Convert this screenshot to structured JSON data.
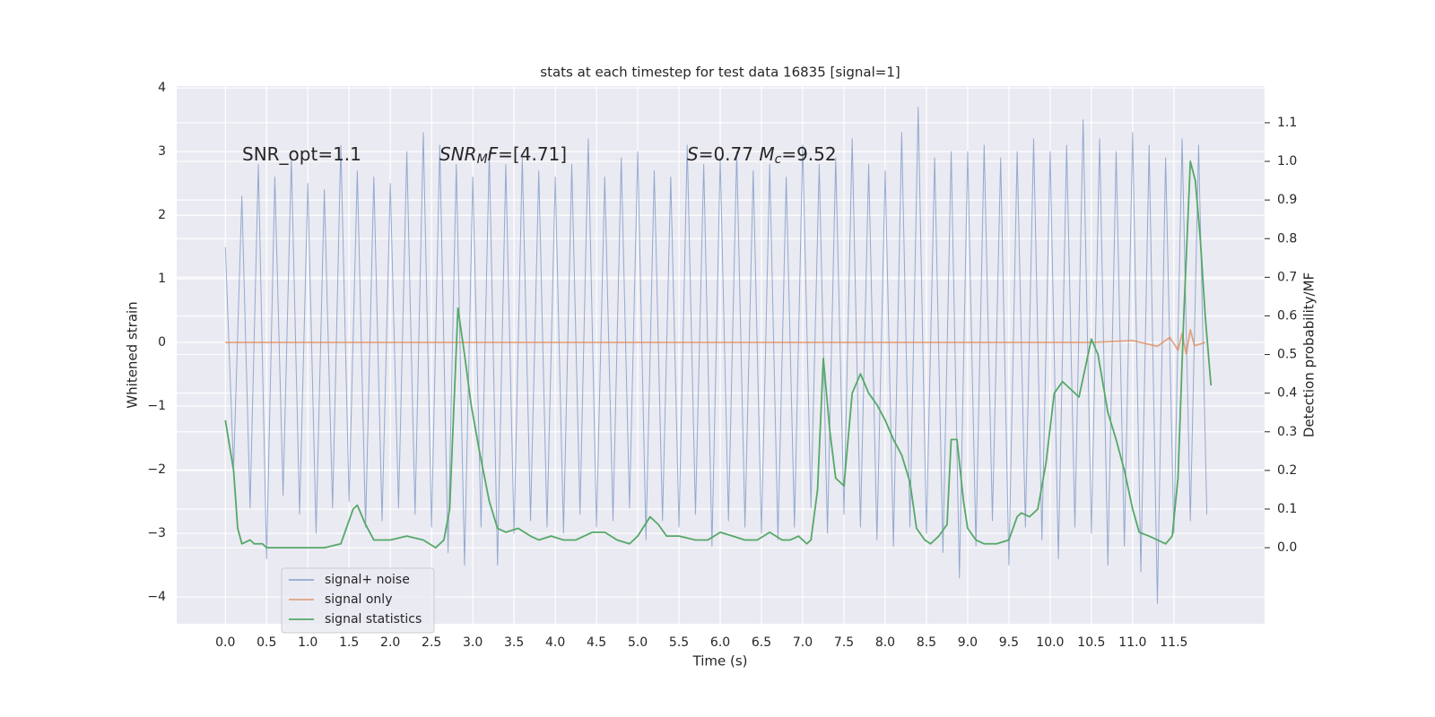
{
  "chart_data": {
    "type": "line",
    "title": "stats at each timestep for test data 16835 [signal=1]",
    "x_label": "Time (s)",
    "y_label": "Whitened strain",
    "y2_label": "Detection probability/MF",
    "xlim": [
      -0.59,
      12.6
    ],
    "ylim": [
      -4.42,
      4.03
    ],
    "y2lim": [
      -0.197,
      1.195
    ],
    "xticks": [
      {
        "value": 0,
        "label": "0.0"
      },
      0.5,
      {
        "value": 1,
        "label": "1.0"
      },
      1.5,
      {
        "value": 2,
        "label": "2.0"
      },
      2.5,
      {
        "value": 3,
        "label": "3.0"
      },
      3.5,
      {
        "value": 4,
        "label": "4.0"
      },
      4.5,
      {
        "value": 5,
        "label": "5.0"
      },
      5.5,
      {
        "value": 6,
        "label": "6.0"
      },
      6.5,
      {
        "value": 7,
        "label": "7.0"
      },
      7.5,
      {
        "value": 8,
        "label": "8.0"
      },
      8.5,
      {
        "value": 9,
        "label": "9.0"
      },
      9.5,
      {
        "value": 10,
        "label": "10.0"
      },
      10.5,
      {
        "value": 11,
        "label": "11.0"
      },
      11.5
    ],
    "yticks": [
      {
        "value": -4,
        "label": "−4"
      },
      {
        "value": -3,
        "label": "−3"
      },
      {
        "value": -2,
        "label": "−2"
      },
      {
        "value": -1,
        "label": "−1"
      },
      0,
      1,
      2,
      3,
      4
    ],
    "y2ticks": [
      {
        "value": 0,
        "label": "0.0"
      },
      0.1,
      0.2,
      0.3,
      0.4,
      0.5,
      0.6,
      0.7,
      0.8,
      0.9,
      {
        "value": 1,
        "label": "1.0"
      },
      1.1
    ],
    "grid": true,
    "legend": "lower left",
    "annotations": [
      [
        {
          "text": "SNR_opt=1.1",
          "style": "normal"
        }
      ],
      [
        {
          "text": "SNR",
          "style": "italic"
        },
        {
          "text": "M",
          "style": "sub"
        },
        {
          "text": "F",
          "style": "italic"
        },
        {
          "text": "=[4.71]",
          "style": "normal"
        }
      ],
      [
        {
          "text": "S",
          "style": "italic"
        },
        {
          "text": "=0.77   ",
          "style": "normal"
        },
        {
          "text": "M",
          "style": "italic"
        },
        {
          "text": "c",
          "style": "sub"
        },
        {
          "text": "=9.52",
          "style": "normal"
        }
      ]
    ],
    "series": [
      {
        "name": "signal+ noise",
        "color": "#4c72b0",
        "opacity": 0.55,
        "x": [
          0,
          0.1,
          0.2,
          0.3,
          0.4,
          0.5,
          0.6,
          0.7,
          0.8,
          0.9,
          1,
          1.1,
          1.2,
          1.3,
          1.4,
          1.5,
          1.6,
          1.7,
          1.8,
          1.9,
          2,
          2.1,
          2.2,
          2.3,
          2.4,
          2.5,
          2.6,
          2.7,
          2.8,
          2.9,
          3,
          3.1,
          3.2,
          3.3,
          3.4,
          3.5,
          3.6,
          3.7,
          3.8,
          3.9,
          4,
          4.1,
          4.2,
          4.3,
          4.4,
          4.5,
          4.6,
          4.7,
          4.8,
          4.9,
          5,
          5.1,
          5.2,
          5.3,
          5.4,
          5.5,
          5.6,
          5.7,
          5.8,
          5.9,
          6,
          6.1,
          6.2,
          6.3,
          6.4,
          6.5,
          6.6,
          6.7,
          6.8,
          6.9,
          7,
          7.1,
          7.2,
          7.3,
          7.4,
          7.5,
          7.6,
          7.7,
          7.8,
          7.9,
          8,
          8.1,
          8.2,
          8.3,
          8.4,
          8.5,
          8.6,
          8.7,
          8.8,
          8.9,
          9,
          9.1,
          9.2,
          9.3,
          9.4,
          9.5,
          9.6,
          9.7,
          9.8,
          9.9,
          10,
          10.1,
          10.2,
          10.3,
          10.4,
          10.5,
          10.6,
          10.7,
          10.8,
          10.9,
          11,
          11.1,
          11.2,
          11.3,
          11.4,
          11.5,
          11.6,
          11.7,
          11.8,
          11.9
        ],
        "values": [
          1.5,
          -2.0,
          2.3,
          -2.6,
          2.8,
          -3.4,
          2.6,
          -2.4,
          2.9,
          -2.7,
          2.5,
          -3.0,
          2.4,
          -2.6,
          3.1,
          -2.5,
          2.7,
          -2.9,
          2.6,
          -2.8,
          2.5,
          -2.6,
          3.0,
          -2.7,
          3.3,
          -2.9,
          3.1,
          -3.3,
          2.8,
          -3.5,
          2.6,
          -2.9,
          3.0,
          -3.5,
          2.8,
          -3.0,
          2.9,
          -2.8,
          2.7,
          -2.9,
          2.6,
          -3.0,
          2.8,
          -2.7,
          3.2,
          -2.9,
          2.6,
          -2.8,
          2.9,
          -2.6,
          3.0,
          -3.1,
          2.7,
          -2.8,
          2.6,
          -2.9,
          3.1,
          -2.7,
          2.8,
          -3.2,
          2.9,
          -2.8,
          3.0,
          -2.9,
          2.7,
          -3.0,
          2.8,
          -3.1,
          2.6,
          -2.9,
          3.1,
          -2.6,
          2.8,
          -3.0,
          2.9,
          -2.7,
          3.2,
          -2.9,
          2.8,
          -3.1,
          2.7,
          -3.2,
          3.3,
          -2.9,
          3.7,
          -3.0,
          2.9,
          -3.3,
          3.0,
          -3.7,
          3.0,
          -3.2,
          3.1,
          -2.8,
          2.9,
          -3.5,
          3.0,
          -2.9,
          3.2,
          -3.1,
          3.0,
          -3.4,
          3.1,
          -2.9,
          3.5,
          -3.0,
          3.2,
          -3.5,
          3.0,
          -3.2,
          3.3,
          -3.6,
          3.1,
          -4.1,
          2.9,
          -3.0,
          3.2,
          -2.8,
          3.1,
          -2.7
        ]
      },
      {
        "name": "signal only",
        "color": "#dd8452",
        "opacity": 0.7,
        "x": [
          0,
          10.5,
          11.0,
          11.3,
          11.45,
          11.55,
          11.6,
          11.65,
          11.7,
          11.75,
          11.88
        ],
        "values": [
          0,
          0,
          0.03,
          -0.06,
          0.08,
          -0.12,
          0.14,
          -0.18,
          0.2,
          -0.05,
          0
        ]
      },
      {
        "name": "signal statistics",
        "color": "#55a868",
        "opacity": 1,
        "axis": "y2",
        "x": [
          0,
          0.1,
          0.15,
          0.2,
          0.3,
          0.35,
          0.45,
          0.5,
          0.7,
          0.9,
          1.2,
          1.4,
          1.55,
          1.6,
          1.7,
          1.8,
          2.0,
          2.2,
          2.4,
          2.55,
          2.65,
          2.72,
          2.82,
          2.9,
          2.98,
          3.08,
          3.2,
          3.3,
          3.4,
          3.55,
          3.7,
          3.8,
          3.95,
          4.1,
          4.25,
          4.45,
          4.6,
          4.75,
          4.9,
          5.0,
          5.15,
          5.25,
          5.35,
          5.5,
          5.7,
          5.85,
          6.0,
          6.15,
          6.3,
          6.45,
          6.6,
          6.75,
          6.85,
          6.95,
          7.05,
          7.1,
          7.18,
          7.25,
          7.33,
          7.4,
          7.5,
          7.6,
          7.7,
          7.8,
          7.9,
          8.0,
          8.1,
          8.2,
          8.3,
          8.38,
          8.48,
          8.55,
          8.65,
          8.75,
          8.8,
          8.87,
          8.95,
          9.0,
          9.1,
          9.2,
          9.35,
          9.5,
          9.6,
          9.65,
          9.75,
          9.85,
          9.95,
          10.05,
          10.15,
          10.25,
          10.35,
          10.42,
          10.5,
          10.58,
          10.7,
          10.8,
          10.9,
          11.0,
          11.08,
          11.2,
          11.3,
          11.4,
          11.48,
          11.55,
          11.62,
          11.7,
          11.76,
          11.82,
          11.88,
          11.95
        ],
        "values": [
          0.33,
          0.2,
          0.05,
          0.01,
          0.02,
          0.01,
          0.01,
          0.0,
          0.0,
          0.0,
          0.0,
          0.01,
          0.1,
          0.11,
          0.06,
          0.02,
          0.02,
          0.03,
          0.02,
          0.0,
          0.02,
          0.1,
          0.62,
          0.5,
          0.37,
          0.25,
          0.12,
          0.05,
          0.04,
          0.05,
          0.03,
          0.02,
          0.03,
          0.02,
          0.02,
          0.04,
          0.04,
          0.02,
          0.01,
          0.03,
          0.08,
          0.06,
          0.03,
          0.03,
          0.02,
          0.02,
          0.04,
          0.03,
          0.02,
          0.02,
          0.04,
          0.02,
          0.02,
          0.03,
          0.01,
          0.02,
          0.15,
          0.49,
          0.3,
          0.18,
          0.16,
          0.4,
          0.45,
          0.4,
          0.37,
          0.33,
          0.28,
          0.24,
          0.17,
          0.05,
          0.02,
          0.01,
          0.03,
          0.06,
          0.28,
          0.28,
          0.12,
          0.05,
          0.02,
          0.01,
          0.01,
          0.02,
          0.08,
          0.09,
          0.08,
          0.1,
          0.22,
          0.4,
          0.43,
          0.41,
          0.39,
          0.46,
          0.54,
          0.5,
          0.35,
          0.28,
          0.2,
          0.1,
          0.04,
          0.03,
          0.02,
          0.01,
          0.03,
          0.18,
          0.6,
          1.0,
          0.95,
          0.8,
          0.6,
          0.42
        ]
      }
    ]
  }
}
